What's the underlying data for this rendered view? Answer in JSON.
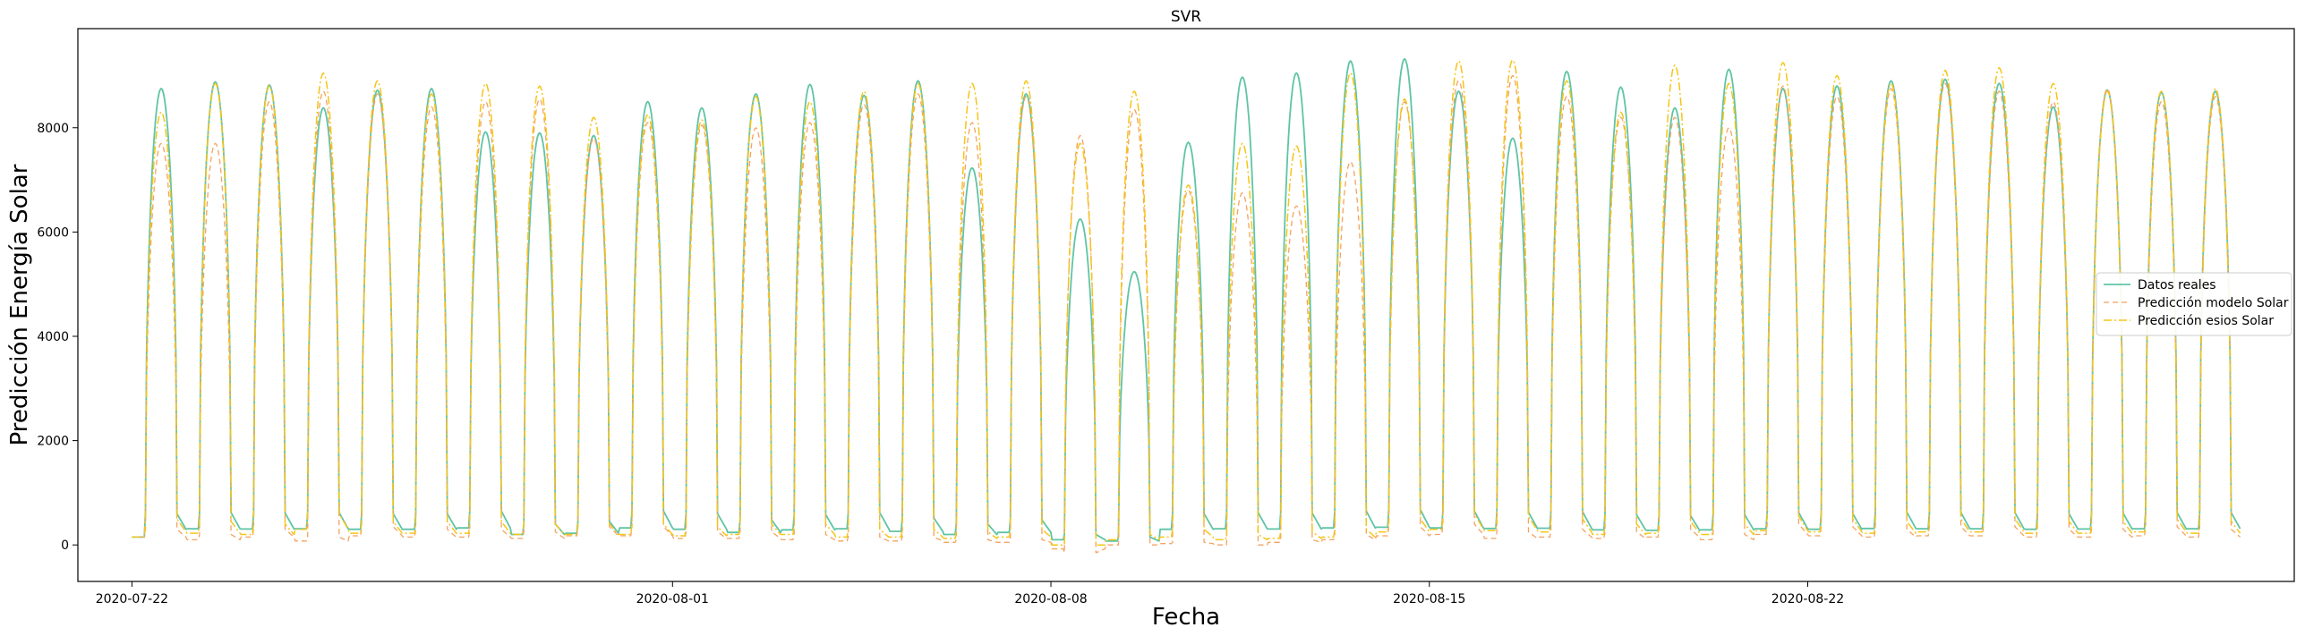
{
  "chart_data": {
    "type": "line",
    "title": "SVR",
    "xlabel": "Fecha",
    "ylabel": "Predicción Energía Solar",
    "xlim": [
      "2020-07-21",
      "2020-08-31"
    ],
    "ylim": [
      -700,
      9900
    ],
    "x_ticks": [
      "2020-07-22",
      "2020-08-01",
      "2020-08-08",
      "2020-08-15",
      "2020-08-22"
    ],
    "y_ticks": [
      0,
      2000,
      4000,
      6000,
      8000
    ],
    "grid": false,
    "legend_position": "center-right",
    "series_start_date": "2020-07-22",
    "series": [
      {
        "name": "Datos reales",
        "color": "#5fc4a6",
        "dash": "solid",
        "daily_peaks": [
          8750,
          8880,
          8820,
          8380,
          8720,
          8750,
          7920,
          7900,
          7850,
          8500,
          8380,
          8650,
          8830,
          8620,
          8900,
          7230,
          8650,
          6250,
          5240,
          7720,
          8970,
          9050,
          9280,
          9320,
          8700,
          7800,
          9080,
          8780,
          8380,
          9120,
          8750,
          8800,
          8900,
          8930,
          8850,
          8400,
          8720,
          8680,
          8700
        ],
        "daily_lows": [
          600,
          620,
          610,
          620,
          600,
          600,
          650,
          400,
          450,
          650,
          600,
          480,
          580,
          620,
          520,
          400,
          480,
          200,
          150,
          600,
          620,
          610,
          650,
          680,
          650,
          630,
          640,
          580,
          560,
          580,
          620,
          600,
          630,
          620,
          620,
          600,
          610,
          620,
          620
        ]
      },
      {
        "name": "Predicción modelo Solar",
        "color": "#f4a261",
        "dash": "dashed",
        "daily_peaks": [
          7700,
          7700,
          8500,
          8700,
          8650,
          8400,
          8500,
          8550,
          7800,
          8100,
          8050,
          8000,
          8100,
          8450,
          8650,
          8100,
          8600,
          7850,
          8350,
          6800,
          6750,
          6500,
          7350,
          8500,
          8900,
          9000,
          8600,
          8200,
          8200,
          8000,
          8800,
          8600,
          8750,
          8850,
          8700,
          8500,
          8750,
          8500,
          8600
        ],
        "daily_lows": [
          300,
          200,
          300,
          150,
          350,
          300,
          300,
          250,
          350,
          350,
          250,
          250,
          200,
          150,
          150,
          100,
          100,
          -150,
          0,
          50,
          0,
          100,
          200,
          350,
          400,
          250,
          300,
          250,
          300,
          200,
          400,
          350,
          300,
          350,
          350,
          300,
          300,
          350,
          300
        ]
      },
      {
        "name": "Predicción esios Solar",
        "color": "#f5c518",
        "dash": "dashdot",
        "daily_peaks": [
          8300,
          8850,
          8800,
          9050,
          8900,
          8650,
          8850,
          8800,
          8200,
          8250,
          8150,
          8600,
          8500,
          8700,
          8850,
          8850,
          8900,
          7700,
          8700,
          6900,
          7700,
          7650,
          9050,
          8550,
          9280,
          9300,
          8900,
          8300,
          9200,
          8850,
          9250,
          9000,
          8850,
          9100,
          9150,
          8850,
          8700,
          8700,
          8750
        ],
        "daily_lows": [
          500,
          450,
          400,
          600,
          450,
          450,
          450,
          400,
          400,
          400,
          350,
          400,
          400,
          300,
          300,
          250,
          300,
          0,
          200,
          300,
          200,
          250,
          300,
          500,
          600,
          550,
          500,
          400,
          450,
          400,
          550,
          500,
          450,
          500,
          500,
          450,
          450,
          500,
          450
        ]
      }
    ]
  }
}
